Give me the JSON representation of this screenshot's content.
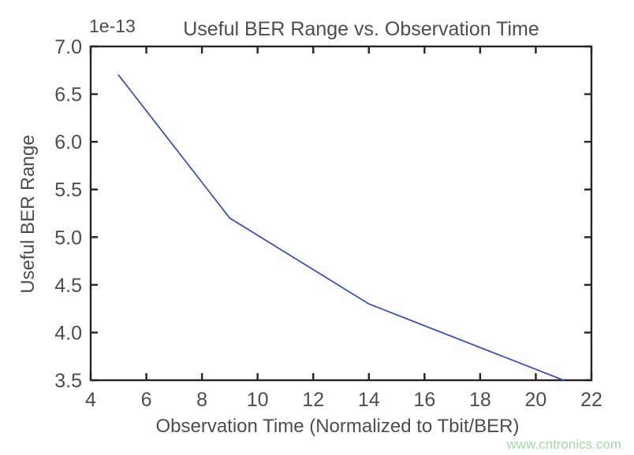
{
  "page": {
    "title": "Useful BER Range vs. Observation Time",
    "offset_label": "1e-13",
    "xlabel": "Observation Time (Normalized to Tbit/BER)",
    "ylabel": "Useful BER Range",
    "watermark": "www.cntronics.com"
  },
  "colors": {
    "line": "#3f53ac",
    "axis": "#2a2223",
    "text": "#4d4d4d",
    "watermark": "#a9d6a9",
    "background": "#ffffff"
  },
  "chart_data": {
    "type": "line",
    "title": "Useful BER Range vs. Observation Time",
    "xlabel": "Observation Time (Normalized to Tbit/BER)",
    "ylabel": "Useful BER Range",
    "y_scale_label": "1e-13",
    "x": [
      5,
      9,
      14,
      21
    ],
    "y": [
      6.7,
      5.2,
      4.3,
      3.5
    ],
    "xlim": [
      4,
      22
    ],
    "ylim": [
      3.5,
      7.0
    ],
    "xticks": [
      4,
      6,
      8,
      10,
      12,
      14,
      16,
      18,
      20,
      22
    ],
    "yticks": [
      3.5,
      4.0,
      4.5,
      5.0,
      5.5,
      6.0,
      6.5,
      7.0
    ],
    "grid": false,
    "legend_position": "none"
  }
}
